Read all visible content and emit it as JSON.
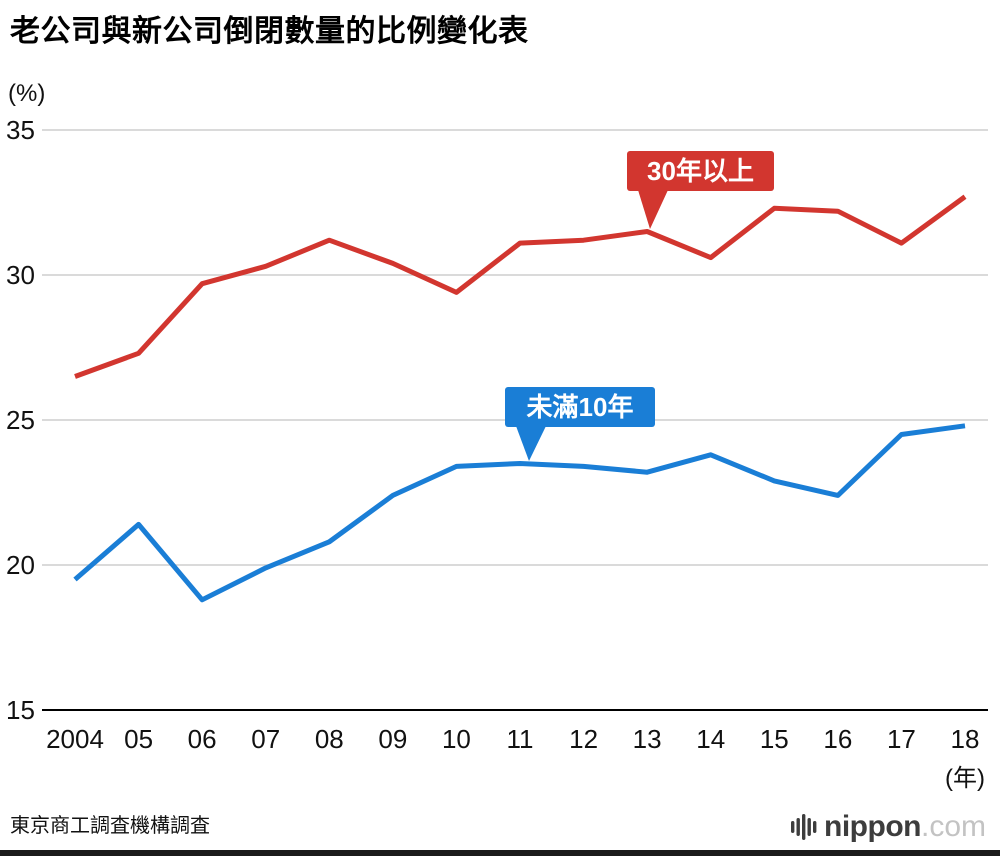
{
  "title": "老公司與新公司倒閉數量的比例變化表",
  "y_axis_unit": "(%)",
  "x_axis_unit": "(年)",
  "source": "東京商工調査機構調査",
  "logo": {
    "name": "nippon",
    "tld": ".com"
  },
  "chart_data": {
    "type": "line",
    "title": "老公司與新公司倒閉數量的比例變化表",
    "x": [
      "2004",
      "05",
      "06",
      "07",
      "08",
      "09",
      "10",
      "11",
      "12",
      "13",
      "14",
      "15",
      "16",
      "17",
      "18"
    ],
    "series": [
      {
        "name": "30年以上",
        "color": "#d2362f",
        "values": [
          26.5,
          27.3,
          29.7,
          30.3,
          31.2,
          30.4,
          29.4,
          31.1,
          31.2,
          31.5,
          30.6,
          32.3,
          32.2,
          31.1,
          32.7
        ]
      },
      {
        "name": "未滿10年",
        "color": "#1a7ed6",
        "values": [
          19.5,
          21.4,
          18.8,
          19.9,
          20.8,
          22.4,
          23.4,
          23.5,
          23.4,
          23.2,
          23.8,
          22.9,
          22.4,
          24.5,
          24.8
        ]
      }
    ],
    "ylim": [
      15,
      35
    ],
    "yticks": [
      35,
      30,
      25,
      20,
      15
    ],
    "ylabel": "(%)",
    "xlabel": "(年)",
    "grid": true,
    "legend_position": "inline-callouts",
    "annotations": [
      {
        "text": "30年以上",
        "anchor_x": "13",
        "series": 0
      },
      {
        "text": "未滿10年",
        "anchor_x": "11",
        "series": 1
      }
    ]
  }
}
